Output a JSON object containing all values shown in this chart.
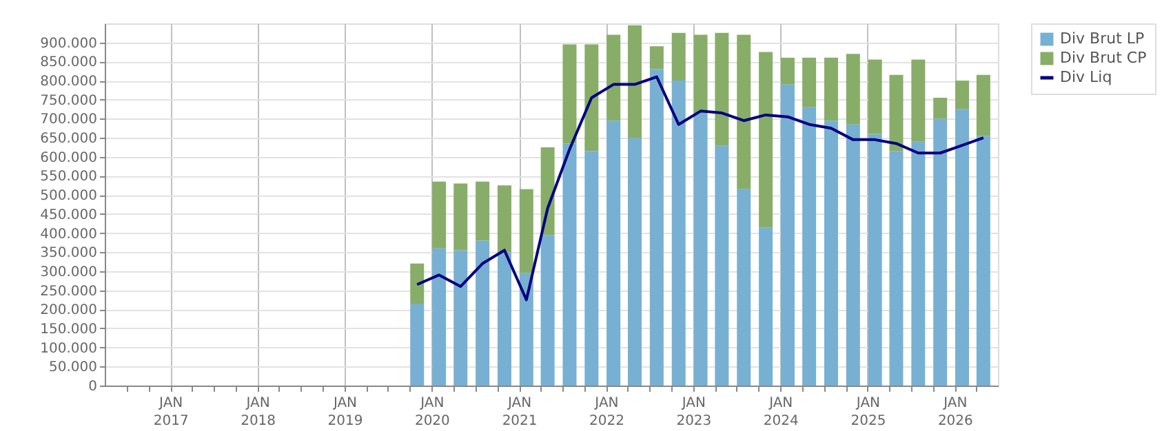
{
  "chart_data": {
    "type": "bar",
    "stacked": true,
    "x": [
      "2019-11",
      "2020-02",
      "2020-05",
      "2020-08",
      "2020-11",
      "2021-02",
      "2021-05",
      "2021-08",
      "2021-11",
      "2022-02",
      "2022-05",
      "2022-08",
      "2022-11",
      "2023-02",
      "2023-05",
      "2023-08",
      "2023-11",
      "2024-02",
      "2024-05",
      "2024-08",
      "2024-11",
      "2025-02",
      "2025-05",
      "2025-08",
      "2025-11",
      "2026-02",
      "2026-05"
    ],
    "series": [
      {
        "name": "Div Brut LP",
        "color": "#77b0d2",
        "values": [
          215000,
          360000,
          355000,
          380000,
          350000,
          295000,
          395000,
          635000,
          615000,
          695000,
          650000,
          830000,
          800000,
          715000,
          630000,
          515000,
          415000,
          790000,
          730000,
          695000,
          685000,
          660000,
          615000,
          640000,
          700000,
          725000,
          655000
        ]
      },
      {
        "name": "Div Brut CP",
        "color": "#88ad68",
        "values": [
          105000,
          175000,
          175000,
          155000,
          175000,
          220000,
          230000,
          260000,
          280000,
          225000,
          295000,
          60000,
          125000,
          205000,
          295000,
          405000,
          460000,
          70000,
          130000,
          165000,
          185000,
          195000,
          200000,
          215000,
          55000,
          75000,
          160000
        ]
      },
      {
        "name": "Div Liq",
        "type": "line",
        "color": "#000080",
        "values": [
          265000,
          290000,
          260000,
          320000,
          355000,
          225000,
          465000,
          620000,
          755000,
          790000,
          790000,
          810000,
          685000,
          720000,
          715000,
          695000,
          710000,
          705000,
          685000,
          675000,
          645000,
          645000,
          635000,
          610000,
          610000,
          630000,
          650000
        ]
      }
    ],
    "xlim": [
      "2016-04",
      "2026-07"
    ],
    "xticks": [
      {
        "value": "2016-07",
        "label": null
      },
      {
        "value": "2016-10",
        "label": null
      },
      {
        "value": "2017-01",
        "label": "JAN 2017"
      },
      {
        "value": "2017-04",
        "label": null
      },
      {
        "value": "2017-07",
        "label": null
      },
      {
        "value": "2017-10",
        "label": null
      },
      {
        "value": "2018-01",
        "label": "JAN 2018"
      },
      {
        "value": "2018-04",
        "label": null
      },
      {
        "value": "2018-07",
        "label": null
      },
      {
        "value": "2018-10",
        "label": null
      },
      {
        "value": "2019-01",
        "label": "JAN 2019"
      },
      {
        "value": "2019-04",
        "label": null
      },
      {
        "value": "2019-07",
        "label": null
      },
      {
        "value": "2019-10",
        "label": null
      },
      {
        "value": "2020-01",
        "label": "JAN 2020"
      },
      {
        "value": "2020-04",
        "label": null
      },
      {
        "value": "2020-07",
        "label": null
      },
      {
        "value": "2020-10",
        "label": null
      },
      {
        "value": "2021-01",
        "label": "JAN 2021"
      },
      {
        "value": "2021-04",
        "label": null
      },
      {
        "value": "2021-07",
        "label": null
      },
      {
        "value": "2021-10",
        "label": null
      },
      {
        "value": "2022-01",
        "label": "JAN 2022"
      },
      {
        "value": "2022-04",
        "label": null
      },
      {
        "value": "2022-07",
        "label": null
      },
      {
        "value": "2022-10",
        "label": null
      },
      {
        "value": "2023-01",
        "label": "JAN 2023"
      },
      {
        "value": "2023-04",
        "label": null
      },
      {
        "value": "2023-07",
        "label": null
      },
      {
        "value": "2023-10",
        "label": null
      },
      {
        "value": "2024-01",
        "label": "JAN 2024"
      },
      {
        "value": "2024-04",
        "label": null
      },
      {
        "value": "2024-07",
        "label": null
      },
      {
        "value": "2024-10",
        "label": null
      },
      {
        "value": "2025-01",
        "label": "JAN 2025"
      },
      {
        "value": "2025-04",
        "label": null
      },
      {
        "value": "2025-07",
        "label": null
      },
      {
        "value": "2025-10",
        "label": null
      },
      {
        "value": "2026-01",
        "label": "JAN 2026"
      },
      {
        "value": "2026-04",
        "label": null
      }
    ],
    "ylim": [
      0,
      950000
    ],
    "yticks": [
      {
        "value": 0,
        "label": "0"
      },
      {
        "value": 50000,
        "label": "50.000"
      },
      {
        "value": 100000,
        "label": "100.000"
      },
      {
        "value": 150000,
        "label": "150.000"
      },
      {
        "value": 200000,
        "label": "200.000"
      },
      {
        "value": 250000,
        "label": "250.000"
      },
      {
        "value": 300000,
        "label": "300.000"
      },
      {
        "value": 350000,
        "label": "350.000"
      },
      {
        "value": 400000,
        "label": "400.000"
      },
      {
        "value": 450000,
        "label": "450.000"
      },
      {
        "value": 500000,
        "label": "500.000"
      },
      {
        "value": 550000,
        "label": "550.000"
      },
      {
        "value": 600000,
        "label": "600.000"
      },
      {
        "value": 650000,
        "label": "650.000"
      },
      {
        "value": 700000,
        "label": "700.000"
      },
      {
        "value": 750000,
        "label": "750.000"
      },
      {
        "value": 800000,
        "label": "800.000"
      },
      {
        "value": 850000,
        "label": "850.000"
      },
      {
        "value": 900000,
        "label": "900.000"
      }
    ],
    "grid": true,
    "legend": "top right"
  }
}
